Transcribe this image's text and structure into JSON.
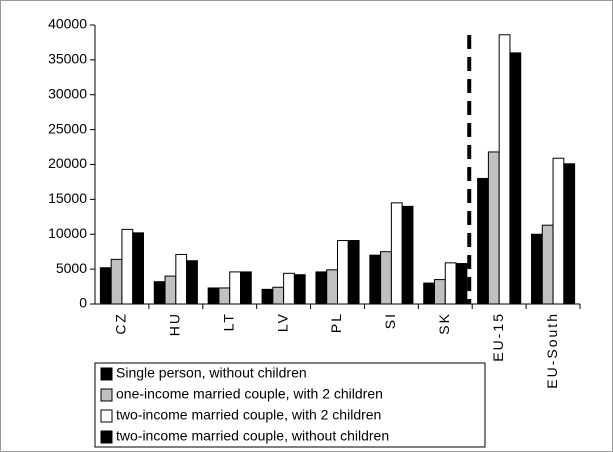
{
  "chart_data": {
    "type": "bar",
    "categories": [
      "CZ",
      "HU",
      "LT",
      "LV",
      "PL",
      "SI",
      "SK",
      "EU-15",
      "EU-South"
    ],
    "series": [
      {
        "name": "Single person, without children",
        "color": "#000000",
        "values": [
          5200,
          3200,
          2300,
          2100,
          4600,
          7000,
          3000,
          18000,
          10000
        ]
      },
      {
        "name": "one-income married couple, with 2 children",
        "color": "#c0c0c0",
        "values": [
          6400,
          4000,
          2300,
          2400,
          4900,
          7500,
          3500,
          21800,
          11300
        ]
      },
      {
        "name": "two-income married couple, with 2 children",
        "color": "#ffffff",
        "values": [
          10700,
          7100,
          4600,
          4400,
          9100,
          14500,
          5900,
          38600,
          20900
        ]
      },
      {
        "name": "two-income married couple, without children",
        "color": "#000000",
        "values": [
          10200,
          6200,
          4600,
          4200,
          9100,
          14000,
          5800,
          36000,
          20100
        ]
      }
    ],
    "ylim": [
      0,
      40000
    ],
    "yticks": [
      0,
      5000,
      10000,
      15000,
      20000,
      25000,
      30000,
      35000,
      40000
    ],
    "grid": false
  }
}
